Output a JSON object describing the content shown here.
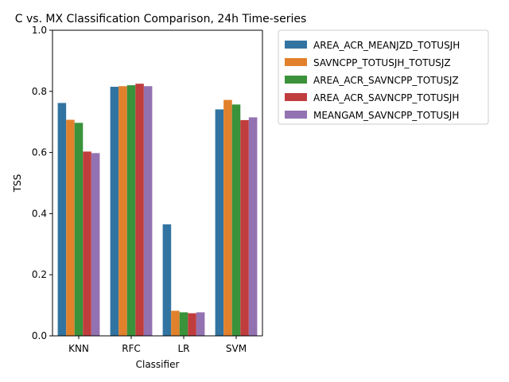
{
  "chart_data": {
    "type": "bar",
    "title": "C vs. MX Classification Comparison, 24h Time-series",
    "xlabel": "Classifier",
    "ylabel": "TSS",
    "ylim": [
      0,
      1.0
    ],
    "yticks": [
      "0.0",
      "0.2",
      "0.4",
      "0.6",
      "0.8",
      "1.0"
    ],
    "categories": [
      "KNN",
      "RFC",
      "LR",
      "SVM"
    ],
    "grid": false,
    "legend_position": "outside-top-right",
    "series": [
      {
        "name": "AREA_ACR_MEANJZD_TOTUSJH",
        "color": "#3274a1",
        "values": [
          0.762,
          0.815,
          0.365,
          0.741
        ]
      },
      {
        "name": "SAVNCPP_TOTUSJH_TOTUSJZ",
        "color": "#e1812c",
        "values": [
          0.707,
          0.817,
          0.082,
          0.772
        ]
      },
      {
        "name": "AREA_ACR_SAVNCPP_TOTUSJZ",
        "color": "#3a923a",
        "values": [
          0.697,
          0.82,
          0.077,
          0.757
        ]
      },
      {
        "name": "AREA_ACR_SAVNCPP_TOTUSJH",
        "color": "#c03d3e",
        "values": [
          0.603,
          0.825,
          0.074,
          0.706
        ]
      },
      {
        "name": "MEANGAM_SAVNCPP_TOTUSJH",
        "color": "#9372b2",
        "values": [
          0.598,
          0.817,
          0.077,
          0.715
        ]
      }
    ]
  }
}
